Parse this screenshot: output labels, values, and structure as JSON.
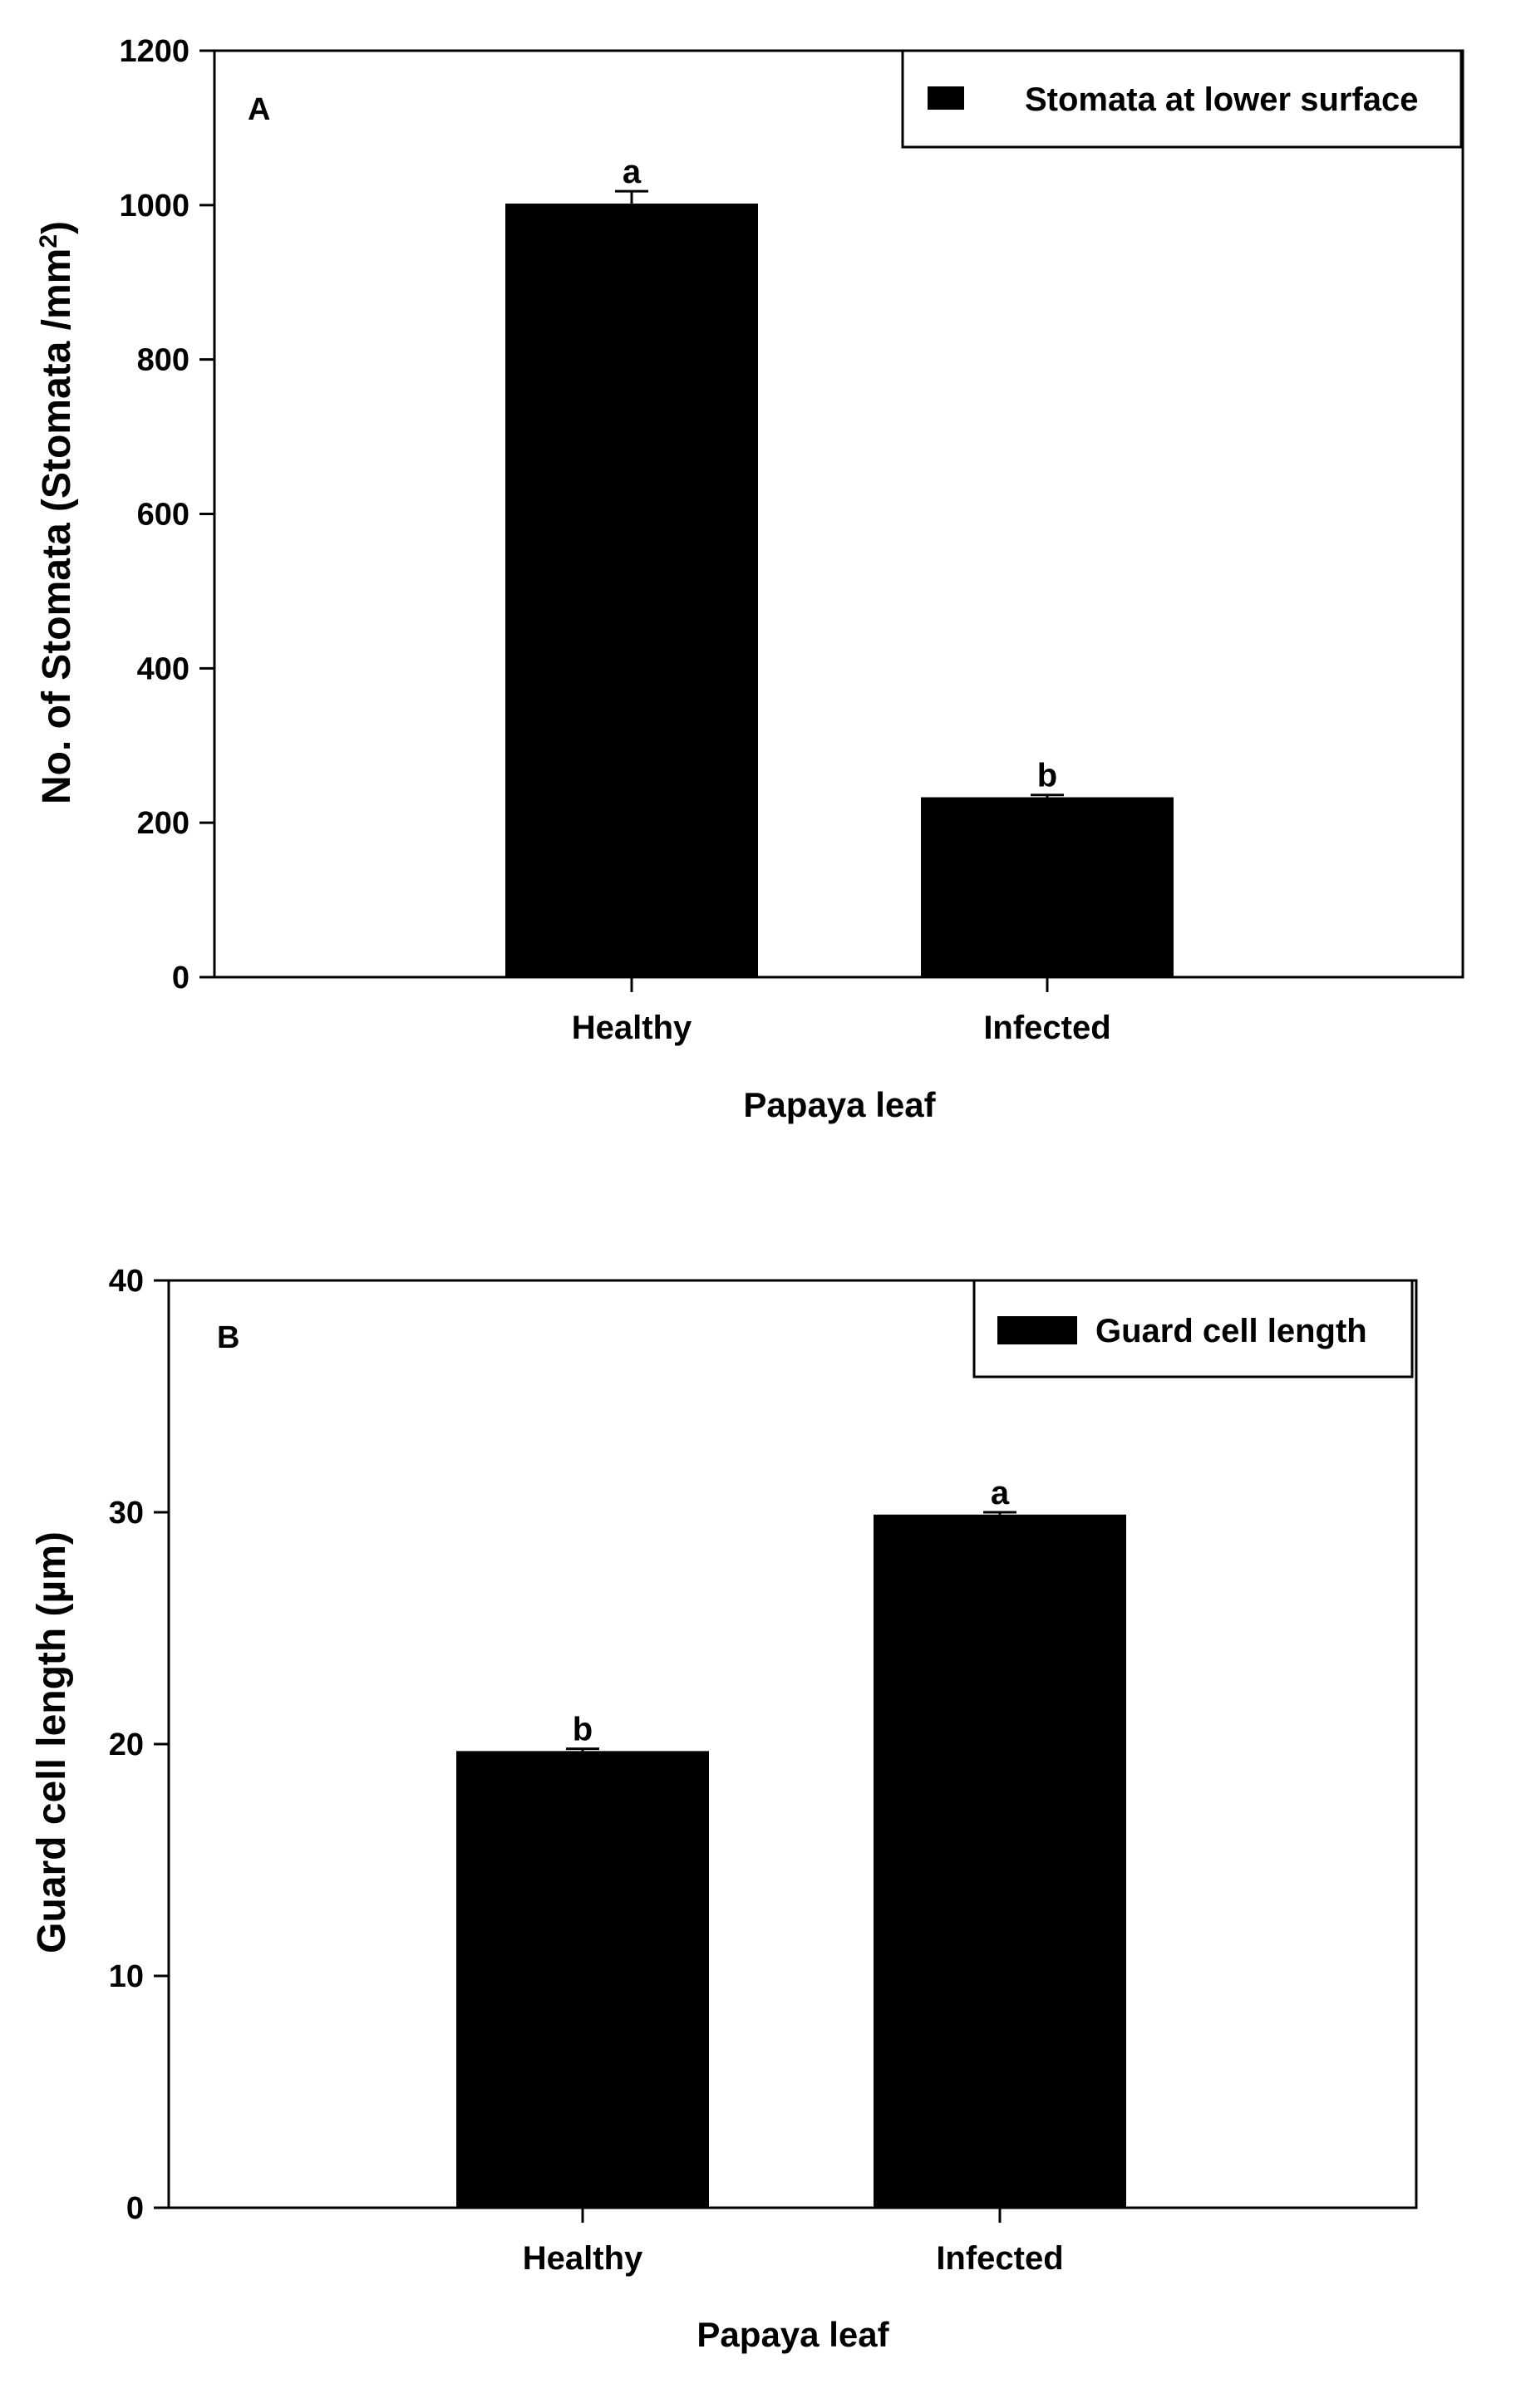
{
  "chart_data": [
    {
      "type": "bar",
      "panel_label": "A",
      "categories": [
        "Healthy",
        "Infected"
      ],
      "series": [
        {
          "name": "Stomata at lower surface",
          "values": [
            1002,
            233
          ],
          "errors": [
            16,
            3
          ],
          "color": "#000000"
        }
      ],
      "significance_letters": [
        "a",
        "b"
      ],
      "xlabel": "Papaya leaf",
      "ylabel_main": "No. of Stomata (Stomata /mm",
      "ylabel_sup": "2",
      "ylabel_tail": ")",
      "ylim": [
        0,
        1200
      ],
      "yticks": [
        0,
        200,
        400,
        600,
        800,
        1000,
        1200
      ],
      "legend_position": "top-right",
      "grid": false
    },
    {
      "type": "bar",
      "panel_label": "B",
      "categories": [
        "Healthy",
        "Infected"
      ],
      "series": [
        {
          "name": "Guard cell length",
          "values": [
            19.7,
            29.9
          ],
          "errors": [
            0.1,
            0.1
          ],
          "color": "#000000"
        }
      ],
      "significance_letters": [
        "b",
        "a"
      ],
      "xlabel": "Papaya leaf",
      "ylabel_main": "Guard cell length (µm)",
      "ylabel_sup": "",
      "ylabel_tail": "",
      "ylim": [
        0,
        40
      ],
      "yticks": [
        0,
        10,
        20,
        30,
        40
      ],
      "legend_position": "top-right",
      "grid": false
    }
  ]
}
